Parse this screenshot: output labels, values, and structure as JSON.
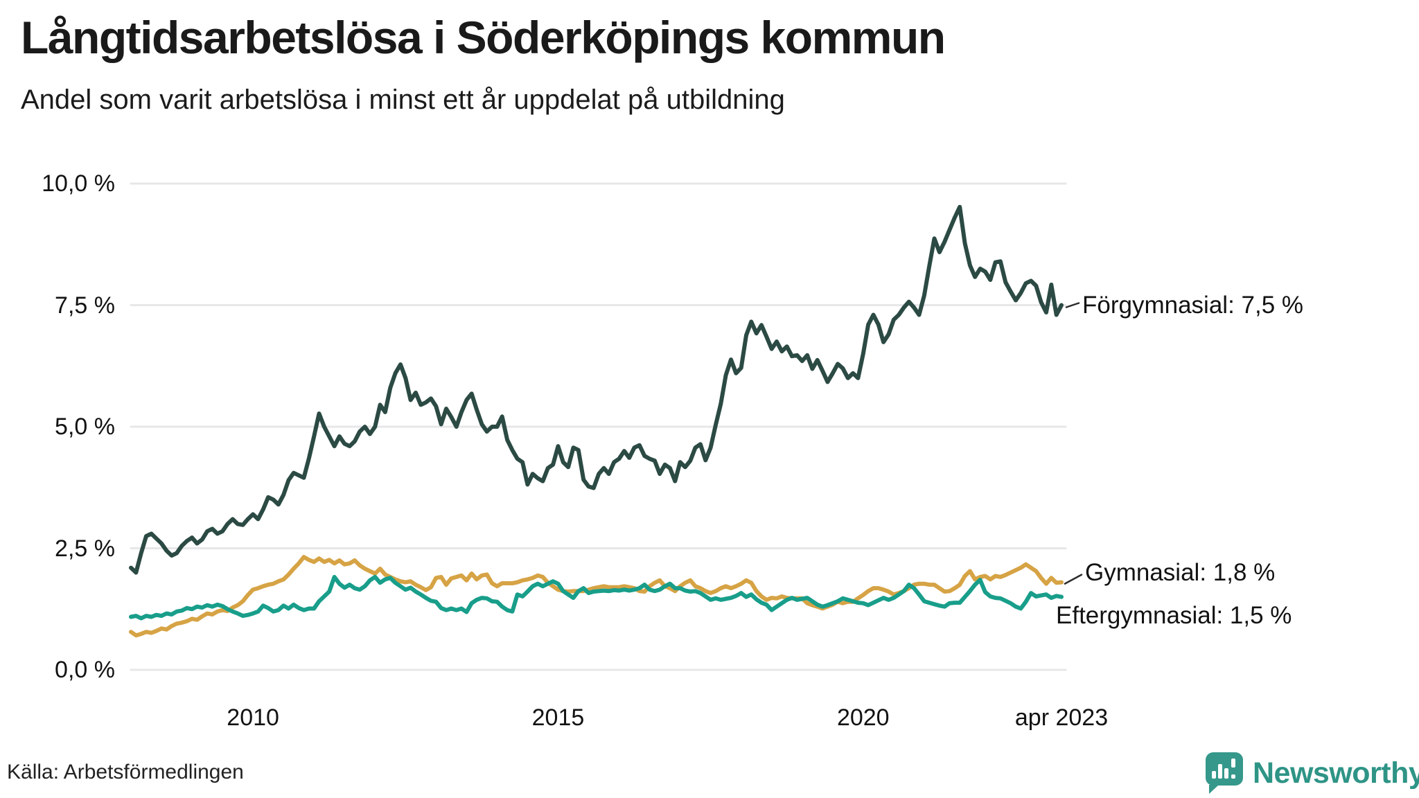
{
  "header": {
    "title": "Långtidsarbetslösa i Söderköpings kommun",
    "subtitle": "Andel som varit arbetslösa i minst ett år uppdelat på utbildning"
  },
  "footer": {
    "source": "Källa: Arbetsförmedlingen",
    "brand": "Newsworthy"
  },
  "colors": {
    "forgymnasial": "#2b4a43",
    "gymnasial": "#d6a345",
    "eftergymnasial": "#189e8a",
    "gridline": "#e7e7e9",
    "text": "#121212",
    "brand_teal": "#2e9486",
    "badge_teal": "#35988b"
  },
  "chart_data": {
    "type": "line",
    "title": "Långtidsarbetslösa i Söderköpings kommun",
    "xlabel": "",
    "ylabel": "",
    "ylim": [
      0,
      10
    ],
    "grid": true,
    "legend_position": "end-of-line-labels",
    "x_unit": "month",
    "x_start": 2008.0,
    "x_end": 2023.25,
    "x_ticks": [
      {
        "label": "2010",
        "t": 2010.0
      },
      {
        "label": "2015",
        "t": 2015.0
      },
      {
        "label": "2020",
        "t": 2020.0
      },
      {
        "label": "apr 2023",
        "t": 2023.25
      }
    ],
    "y_ticks": [
      {
        "label": "10,0 %",
        "value": 10
      },
      {
        "label": "7,5 %",
        "value": 7.5
      },
      {
        "label": "5,0 %",
        "value": 5
      },
      {
        "label": "2,5 %",
        "value": 2.5
      },
      {
        "label": "0,0 %",
        "value": 0
      }
    ],
    "series": [
      {
        "name": "Förgymnasial",
        "annotation": "Förgymnasial: 7,5 %",
        "end_value": 7.5,
        "color": "#2b4a43",
        "values": [
          2.1,
          2.0,
          2.4,
          2.75,
          2.8,
          2.7,
          2.6,
          2.45,
          2.35,
          2.4,
          2.55,
          2.65,
          2.72,
          2.6,
          2.68,
          2.85,
          2.9,
          2.8,
          2.85,
          3.0,
          3.1,
          3.0,
          2.98,
          3.1,
          3.2,
          3.1,
          3.3,
          3.55,
          3.5,
          3.4,
          3.6,
          3.9,
          4.05,
          4.0,
          3.95,
          4.35,
          4.8,
          5.27,
          5.0,
          4.8,
          4.6,
          4.8,
          4.65,
          4.6,
          4.7,
          4.9,
          5.0,
          4.85,
          5.0,
          5.45,
          5.3,
          5.8,
          6.1,
          6.28,
          6.0,
          5.55,
          5.7,
          5.45,
          5.5,
          5.58,
          5.42,
          5.05,
          5.37,
          5.2,
          5.0,
          5.3,
          5.55,
          5.68,
          5.35,
          5.05,
          4.9,
          5.0,
          5.0,
          5.21,
          4.73,
          4.52,
          4.34,
          4.27,
          3.81,
          4.03,
          3.94,
          3.88,
          4.15,
          4.22,
          4.6,
          4.27,
          4.17,
          4.57,
          4.52,
          3.91,
          3.77,
          3.74,
          4.03,
          4.15,
          4.03,
          4.27,
          4.34,
          4.5,
          4.36,
          4.57,
          4.62,
          4.4,
          4.34,
          4.3,
          4.03,
          4.22,
          4.15,
          3.88,
          4.27,
          4.17,
          4.3,
          4.57,
          4.64,
          4.31,
          4.57,
          5.04,
          5.47,
          6.06,
          6.38,
          6.1,
          6.21,
          6.88,
          7.16,
          6.92,
          7.09,
          6.85,
          6.6,
          6.75,
          6.55,
          6.65,
          6.45,
          6.47,
          6.35,
          6.47,
          6.19,
          6.37,
          6.15,
          5.92,
          6.1,
          6.29,
          6.2,
          6.0,
          6.1,
          6.0,
          6.5,
          7.1,
          7.3,
          7.1,
          6.74,
          6.9,
          7.2,
          7.3,
          7.45,
          7.57,
          7.45,
          7.3,
          7.7,
          8.3,
          8.87,
          8.59,
          8.8,
          9.05,
          9.3,
          9.52,
          8.77,
          8.32,
          8.08,
          8.25,
          8.19,
          8.02,
          8.38,
          8.4,
          7.97,
          7.78,
          7.6,
          7.75,
          7.95,
          8.0,
          7.9,
          7.56,
          7.35,
          7.92,
          7.3,
          7.5
        ]
      },
      {
        "name": "Gymnasial",
        "annotation": "Gymnasial: 1,8 %",
        "end_value": 1.8,
        "color": "#d6a345",
        "values": [
          0.78,
          0.71,
          0.74,
          0.78,
          0.76,
          0.8,
          0.85,
          0.83,
          0.9,
          0.95,
          0.97,
          1.0,
          1.05,
          1.03,
          1.1,
          1.16,
          1.14,
          1.2,
          1.23,
          1.21,
          1.28,
          1.33,
          1.41,
          1.54,
          1.65,
          1.68,
          1.72,
          1.75,
          1.77,
          1.82,
          1.86,
          1.96,
          2.08,
          2.19,
          2.32,
          2.26,
          2.22,
          2.29,
          2.22,
          2.26,
          2.19,
          2.25,
          2.17,
          2.19,
          2.25,
          2.15,
          2.08,
          2.03,
          1.98,
          2.08,
          1.96,
          1.91,
          1.86,
          1.82,
          1.8,
          1.82,
          1.75,
          1.7,
          1.64,
          1.7,
          1.89,
          1.91,
          1.75,
          1.88,
          1.91,
          1.94,
          1.84,
          1.98,
          1.86,
          1.94,
          1.96,
          1.78,
          1.72,
          1.78,
          1.78,
          1.78,
          1.8,
          1.84,
          1.86,
          1.89,
          1.94,
          1.91,
          1.79,
          1.72,
          1.65,
          1.62,
          1.61,
          1.62,
          1.62,
          1.62,
          1.65,
          1.68,
          1.7,
          1.72,
          1.7,
          1.7,
          1.7,
          1.72,
          1.7,
          1.68,
          1.62,
          1.61,
          1.72,
          1.79,
          1.84,
          1.72,
          1.68,
          1.62,
          1.72,
          1.79,
          1.84,
          1.72,
          1.68,
          1.62,
          1.58,
          1.62,
          1.68,
          1.72,
          1.68,
          1.72,
          1.77,
          1.84,
          1.79,
          1.62,
          1.51,
          1.44,
          1.48,
          1.47,
          1.51,
          1.48,
          1.47,
          1.47,
          1.47,
          1.37,
          1.33,
          1.3,
          1.26,
          1.3,
          1.34,
          1.4,
          1.37,
          1.4,
          1.4,
          1.47,
          1.54,
          1.62,
          1.68,
          1.68,
          1.65,
          1.61,
          1.55,
          1.58,
          1.62,
          1.68,
          1.75,
          1.77,
          1.77,
          1.75,
          1.75,
          1.68,
          1.61,
          1.62,
          1.68,
          1.75,
          1.93,
          2.03,
          1.86,
          1.91,
          1.93,
          1.86,
          1.93,
          1.91,
          1.95,
          2.0,
          2.05,
          2.1,
          2.17,
          2.1,
          2.03,
          1.89,
          1.77,
          1.89,
          1.79,
          1.8
        ]
      },
      {
        "name": "Eftergymnasial",
        "annotation": "Eftergymnasial: 1,5 %",
        "end_value": 1.5,
        "color": "#189e8a",
        "values": [
          1.09,
          1.11,
          1.06,
          1.11,
          1.09,
          1.13,
          1.11,
          1.16,
          1.14,
          1.2,
          1.22,
          1.27,
          1.25,
          1.3,
          1.28,
          1.33,
          1.3,
          1.34,
          1.31,
          1.25,
          1.2,
          1.16,
          1.11,
          1.13,
          1.16,
          1.2,
          1.32,
          1.27,
          1.2,
          1.23,
          1.32,
          1.26,
          1.34,
          1.27,
          1.23,
          1.26,
          1.26,
          1.41,
          1.51,
          1.61,
          1.91,
          1.77,
          1.69,
          1.75,
          1.68,
          1.65,
          1.72,
          1.84,
          1.91,
          1.79,
          1.86,
          1.89,
          1.79,
          1.72,
          1.65,
          1.69,
          1.61,
          1.55,
          1.48,
          1.42,
          1.4,
          1.27,
          1.23,
          1.26,
          1.23,
          1.26,
          1.19,
          1.37,
          1.44,
          1.48,
          1.47,
          1.41,
          1.4,
          1.3,
          1.23,
          1.2,
          1.55,
          1.51,
          1.61,
          1.72,
          1.77,
          1.72,
          1.77,
          1.82,
          1.77,
          1.62,
          1.55,
          1.48,
          1.62,
          1.68,
          1.58,
          1.61,
          1.62,
          1.63,
          1.62,
          1.64,
          1.63,
          1.65,
          1.63,
          1.65,
          1.68,
          1.75,
          1.65,
          1.62,
          1.65,
          1.72,
          1.77,
          1.68,
          1.68,
          1.63,
          1.61,
          1.62,
          1.58,
          1.51,
          1.44,
          1.47,
          1.44,
          1.46,
          1.48,
          1.52,
          1.58,
          1.5,
          1.55,
          1.45,
          1.38,
          1.34,
          1.23,
          1.3,
          1.37,
          1.44,
          1.48,
          1.44,
          1.46,
          1.48,
          1.41,
          1.34,
          1.3,
          1.33,
          1.37,
          1.41,
          1.47,
          1.44,
          1.41,
          1.38,
          1.37,
          1.33,
          1.38,
          1.43,
          1.48,
          1.44,
          1.48,
          1.55,
          1.62,
          1.75,
          1.68,
          1.55,
          1.41,
          1.38,
          1.35,
          1.32,
          1.3,
          1.37,
          1.38,
          1.38,
          1.5,
          1.62,
          1.75,
          1.85,
          1.6,
          1.51,
          1.48,
          1.47,
          1.42,
          1.37,
          1.3,
          1.26,
          1.4,
          1.58,
          1.51,
          1.53,
          1.55,
          1.48,
          1.52,
          1.5
        ]
      }
    ]
  }
}
